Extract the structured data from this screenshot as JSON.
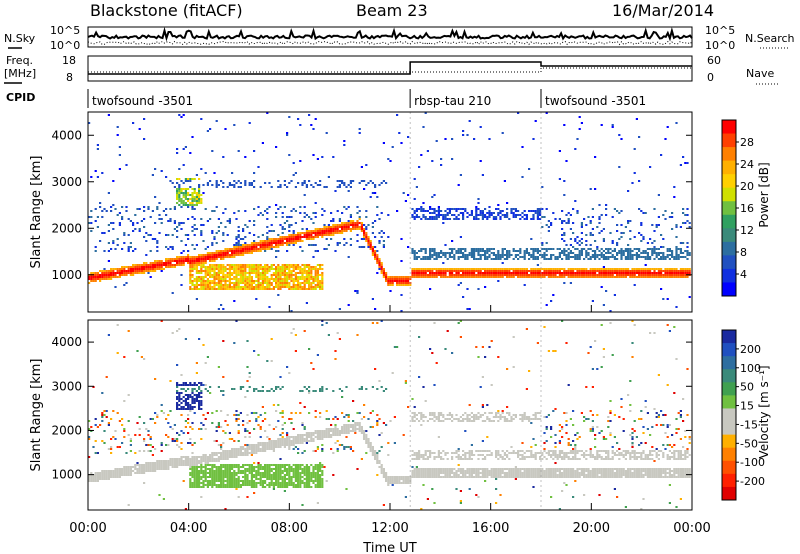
{
  "header": {
    "station": "Blackstone (fitACF)",
    "beam": "Beam 23",
    "date": "16/Mar/2014"
  },
  "top_panels": {
    "nsky_label": "N.Sky",
    "nsearch_label": "N.Search",
    "counts_ticks": [
      "10^5",
      "10^0"
    ],
    "freq_label_line1": "Freq.",
    "freq_label_line2": "[MHz]",
    "freq_ticks": [
      "18",
      "8"
    ],
    "nave_label": "Nave",
    "nave_ticks": [
      "60",
      "0"
    ],
    "cpid_label": "CPID",
    "cpid_segments": [
      {
        "name": "twofsound -3501",
        "start_hour": 0.0,
        "end_hour": 12.8
      },
      {
        "name": "rbsp-tau 210",
        "start_hour": 12.8,
        "end_hour": 18.0
      },
      {
        "name": "twofsound -3501",
        "start_hour": 18.0,
        "end_hour": 24.0
      }
    ]
  },
  "chart_data": [
    {
      "type": "heatmap",
      "quantity": "Power",
      "ylabel": "Slant Range [km]",
      "xlim_hours": [
        0,
        24
      ],
      "ylim_km": [
        200,
        4500
      ],
      "y_ticks": [
        1000,
        2000,
        3000,
        4000
      ],
      "colorbar_label": "Power [dB]",
      "colorbar_ticks": [
        "28",
        "24",
        "20",
        "16",
        "12",
        "8",
        "4"
      ],
      "colorbar_colors": [
        "#ff0000",
        "#ff4000",
        "#ff8000",
        "#ffb000",
        "#ffd000",
        "#d0e000",
        "#70c040",
        "#30a060",
        "#3a8a7a",
        "#2c6ea0",
        "#2050c0",
        "#1030e0",
        "#0000ff"
      ],
      "features": [
        {
          "name": "main ground scatter",
          "start_hour": 0.0,
          "end_hour": 24.0,
          "range_km_start": 1000,
          "range_km_end": 1150,
          "power_db": 24
        },
        {
          "name": "daytime patch",
          "start_hour": 4.0,
          "end_hour": 9.3,
          "range_km_low": 750,
          "range_km_high": 1200,
          "power_db": 18
        },
        {
          "name": "far scatter band",
          "start_hour": 12.8,
          "end_hour": 18.0,
          "range_km_low": 2200,
          "range_km_high": 2450,
          "power_db": 6
        }
      ]
    },
    {
      "type": "heatmap",
      "quantity": "Velocity",
      "ylabel": "Slant Range [km]",
      "xlabel": "Time UT",
      "x_ticks": [
        "00:00",
        "04:00",
        "08:00",
        "12:00",
        "16:00",
        "20:00",
        "00:00"
      ],
      "xlim_hours": [
        0,
        24
      ],
      "ylim_km": [
        200,
        4500
      ],
      "y_ticks": [
        1000,
        2000,
        3000,
        4000
      ],
      "colorbar_label": "Velocity [m s⁻¹]",
      "colorbar_ticks": [
        "200",
        "100",
        "50",
        "15",
        "-15",
        "-50",
        "-100",
        "-200"
      ],
      "colorbar_colors": [
        "#1a2aa0",
        "#2050c0",
        "#2e6ea0",
        "#3a8a7a",
        "#40a050",
        "#70c040",
        "#c8c8c0",
        "#c8c8c0",
        "#ffb000",
        "#ff8000",
        "#ff5000",
        "#ff2000",
        "#e00000"
      ],
      "features": [
        {
          "name": "ground scatter (grey)",
          "start_hour": 12.8,
          "end_hour": 24.0,
          "range_km_low": 950,
          "range_km_high": 1400,
          "velocity_ms": 0
        },
        {
          "name": "green slow band",
          "start_hour": 4.0,
          "end_hour": 9.3,
          "range_km_low": 750,
          "range_km_high": 1200,
          "velocity_ms": 30
        }
      ]
    }
  ]
}
